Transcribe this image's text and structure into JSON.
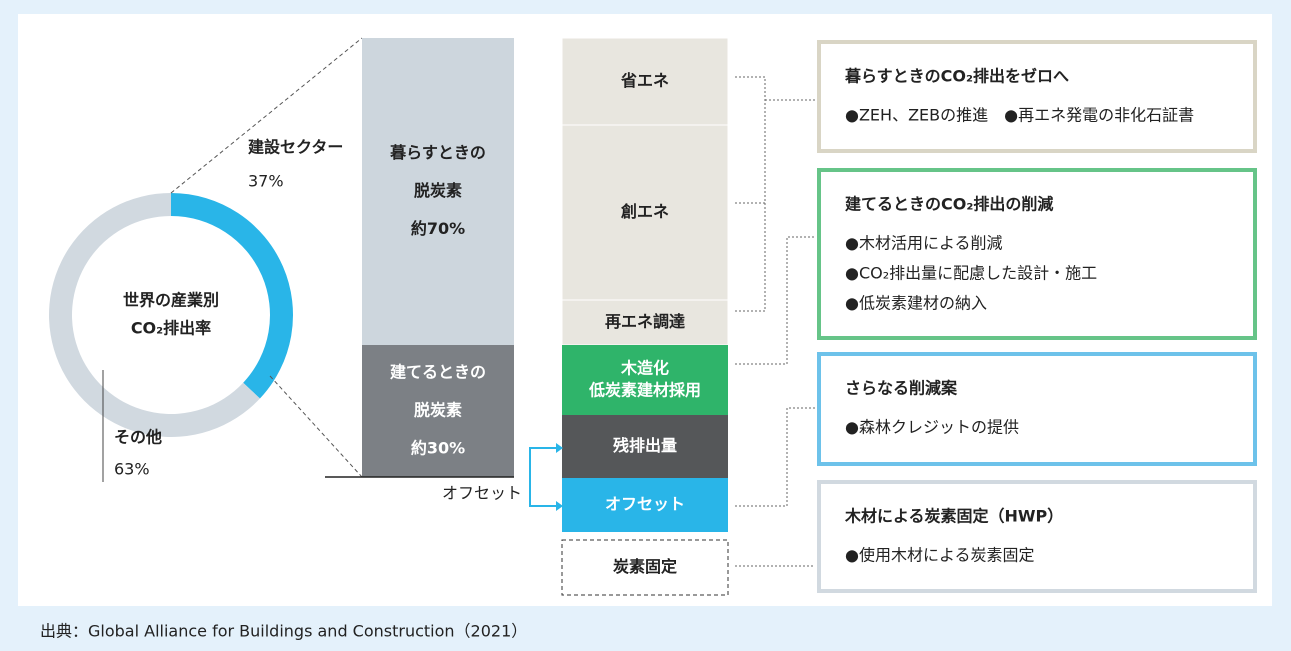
{
  "donut": {
    "title": [
      "世界の産業別",
      "CO₂排出率"
    ],
    "segments": [
      {
        "label": "建設セクター",
        "value": 37,
        "value_label": "37%"
      },
      {
        "label": "その他",
        "value": 63,
        "value_label": "63%"
      }
    ]
  },
  "decarbonization": [
    {
      "lines": [
        "暮らすときの",
        "脱炭素",
        "約70%"
      ]
    },
    {
      "lines": [
        "建てるときの",
        "脱炭素",
        "約30%"
      ]
    }
  ],
  "measures": [
    {
      "lines": [
        "省エネ"
      ]
    },
    {
      "lines": [
        "創エネ"
      ]
    },
    {
      "lines": [
        "再エネ調達"
      ]
    },
    {
      "lines": [
        "木造化",
        "低炭素建材採用"
      ]
    },
    {
      "lines": [
        "残排出量"
      ]
    },
    {
      "lines": [
        "オフセット"
      ]
    },
    {
      "lines": [
        "炭素固定"
      ]
    }
  ],
  "offset_label": "オフセット",
  "boxes": [
    {
      "title": "暮らすときのCO₂排出をゼロへ",
      "items": [
        "●ZEH、ZEBの推進　●再エネ発電の非化石証書"
      ]
    },
    {
      "title": "建てるときのCO₂排出の削減",
      "items": [
        "●木材活用による削減",
        "●CO₂排出量に配慮した設計・施工",
        "●低炭素建材の納入"
      ]
    },
    {
      "title": "さらなる削減案",
      "items": [
        "●森林クレジットの提供"
      ]
    },
    {
      "title": "木材による炭素固定（HWP）",
      "items": [
        "●使用木材による炭素固定"
      ]
    }
  ],
  "source": "出典：Global Alliance for Buildings and Construction（2021）"
}
